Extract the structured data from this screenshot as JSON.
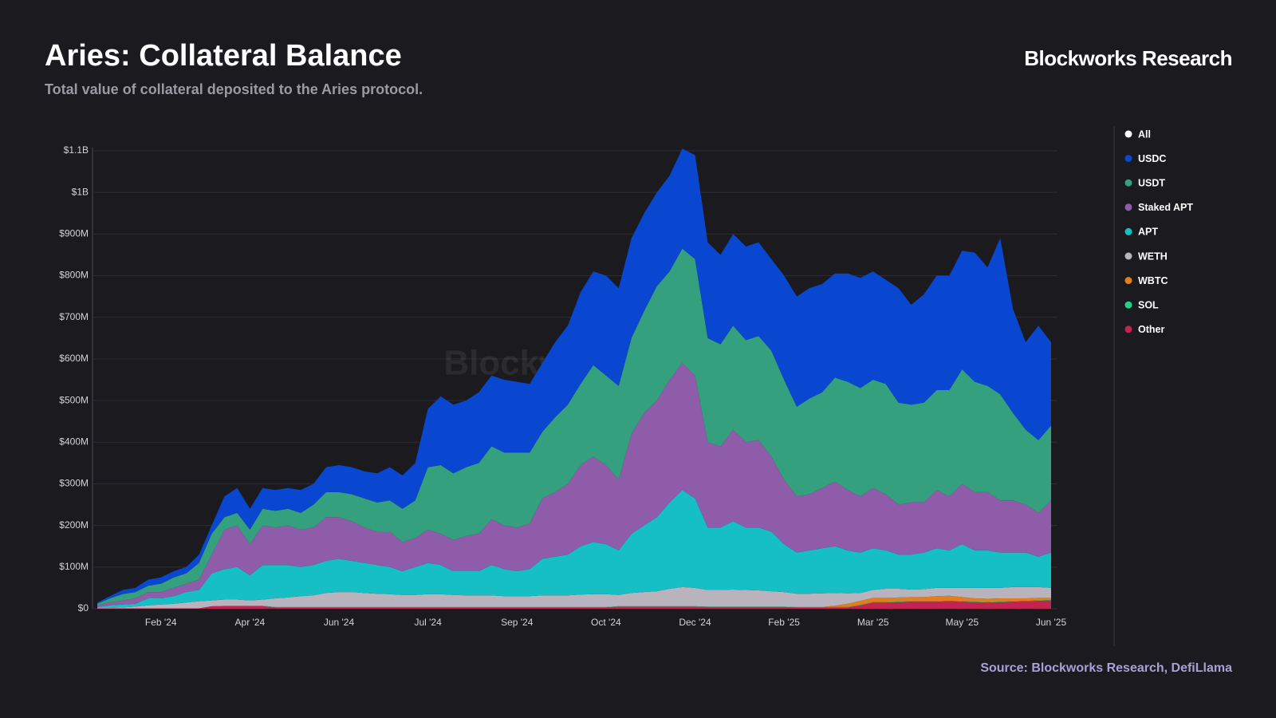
{
  "chart_data": {
    "type": "stacked_area",
    "title": "Aries: Collateral Balance",
    "subtitle": "Total value of collateral deposited to the Aries protocol.",
    "brand": "Blockworks Research",
    "watermark": "Blockworks Research",
    "source": "Source: Blockworks Research, DefiLlama",
    "legend": {
      "position": "right",
      "all_label": "All"
    },
    "grid": true,
    "categories": [
      null,
      null,
      null,
      null,
      null,
      "Feb '24",
      null,
      null,
      null,
      null,
      null,
      null,
      "Apr '24",
      null,
      null,
      null,
      null,
      null,
      null,
      "Jun '24",
      null,
      null,
      null,
      null,
      null,
      null,
      "Jul '24",
      null,
      null,
      null,
      null,
      null,
      null,
      "Sep '24",
      null,
      null,
      null,
      null,
      null,
      null,
      "Oct '24",
      null,
      null,
      null,
      null,
      null,
      null,
      "Dec '24",
      null,
      null,
      null,
      null,
      null,
      null,
      "Feb '25",
      null,
      null,
      null,
      null,
      null,
      null,
      "Mar '25",
      null,
      null,
      null,
      null,
      null,
      null,
      "May '25",
      null,
      null,
      null,
      null,
      null,
      null,
      "Jun '25"
    ],
    "ylim": [
      0,
      1100
    ],
    "yticks": [
      {
        "value": 0,
        "label": "$0"
      },
      {
        "value": 100,
        "label": "$100M"
      },
      {
        "value": 200,
        "label": "$200M"
      },
      {
        "value": 300,
        "label": "$300M"
      },
      {
        "value": 400,
        "label": "$400M"
      },
      {
        "value": 500,
        "label": "$500M"
      },
      {
        "value": 600,
        "label": "$600M"
      },
      {
        "value": 700,
        "label": "$700M"
      },
      {
        "value": 800,
        "label": "$800M"
      },
      {
        "value": 900,
        "label": "$900M"
      },
      {
        "value": 1000,
        "label": "$1B"
      },
      {
        "value": 1100,
        "label": "$1.1B"
      }
    ],
    "series": [
      {
        "name": "USDC",
        "color": "#0a47d1",
        "values": [
          3,
          5,
          10,
          10,
          15,
          15,
          15,
          15,
          20,
          20,
          50,
          60,
          50,
          50,
          50,
          50,
          55,
          50,
          60,
          65,
          65,
          65,
          70,
          80,
          80,
          90,
          140,
          165,
          165,
          160,
          170,
          170,
          175,
          170,
          165,
          165,
          180,
          190,
          220,
          225,
          240,
          235,
          240,
          235,
          225,
          230,
          240,
          250,
          230,
          215,
          220,
          225,
          225,
          220,
          250,
          265,
          265,
          260,
          250,
          260,
          265,
          260,
          250,
          275,
          240,
          260,
          275,
          275,
          285,
          310,
          285,
          375,
          250,
          210,
          275,
          200
        ]
      },
      {
        "name": "USDT",
        "color": "#35a07e",
        "values": [
          4,
          10,
          15,
          15,
          15,
          20,
          25,
          25,
          40,
          50,
          30,
          30,
          35,
          40,
          40,
          40,
          40,
          55,
          60,
          60,
          65,
          70,
          70,
          75,
          80,
          90,
          150,
          165,
          160,
          165,
          170,
          175,
          175,
          180,
          170,
          160,
          180,
          190,
          195,
          220,
          215,
          225,
          230,
          245,
          275,
          260,
          275,
          280,
          250,
          245,
          250,
          245,
          250,
          255,
          240,
          215,
          230,
          230,
          250,
          260,
          260,
          260,
          265,
          245,
          235,
          240,
          240,
          255,
          275,
          265,
          255,
          255,
          210,
          180,
          175,
          180
        ]
      },
      {
        "name": "Staked APT",
        "color": "#8e5ca8",
        "values": [
          4,
          7,
          10,
          13,
          15,
          15,
          20,
          20,
          25,
          45,
          95,
          100,
          75,
          95,
          90,
          95,
          90,
          90,
          105,
          100,
          95,
          85,
          80,
          85,
          70,
          70,
          80,
          75,
          75,
          85,
          90,
          110,
          105,
          105,
          110,
          145,
          155,
          170,
          195,
          205,
          190,
          170,
          240,
          270,
          280,
          295,
          305,
          295,
          205,
          195,
          220,
          205,
          210,
          180,
          155,
          135,
          135,
          145,
          155,
          145,
          135,
          145,
          135,
          120,
          125,
          120,
          140,
          130,
          145,
          140,
          140,
          125,
          125,
          115,
          105,
          125
        ]
      },
      {
        "name": "APT",
        "color": "#15bfc4",
        "values": [
          2,
          6,
          7,
          7,
          17,
          15,
          18,
          25,
          27,
          65,
          73,
          78,
          60,
          83,
          80,
          78,
          70,
          73,
          77,
          80,
          75,
          72,
          69,
          65,
          57,
          67,
          75,
          70,
          57,
          58,
          58,
          73,
          65,
          60,
          65,
          88,
          93,
          98,
          116,
          125,
          120,
          107,
          142,
          160,
          178,
          207,
          233,
          215,
          150,
          150,
          164,
          150,
          151,
          143,
          115,
          99,
          104,
          108,
          112,
          103,
          97,
          100,
          92,
          82,
          84,
          88,
          95,
          90,
          105,
          90,
          90,
          85,
          83,
          83,
          73,
          85
        ]
      },
      {
        "name": "WETH",
        "color": "#b9b3be",
        "values": [
          1,
          1,
          2,
          4,
          7,
          9,
          11,
          14,
          17,
          14,
          15,
          15,
          13,
          15,
          21,
          23,
          26,
          28,
          34,
          36,
          36,
          34,
          32,
          31,
          29,
          29,
          31,
          31,
          29,
          28,
          28,
          28,
          26,
          26,
          26,
          28,
          28,
          28,
          30,
          31,
          31,
          27,
          32,
          34,
          36,
          42,
          46,
          44,
          40,
          40,
          41,
          40,
          39,
          37,
          35,
          32,
          32,
          33,
          31,
          25,
          19,
          19,
          22,
          21,
          18,
          19,
          20,
          19,
          22,
          25,
          26,
          25,
          27,
          27,
          26,
          24
        ]
      },
      {
        "name": "WBTC",
        "color": "#e07f1b",
        "values": [
          0,
          0,
          0,
          0,
          0,
          0,
          0,
          0,
          0,
          0,
          0,
          0,
          0,
          0,
          0,
          0,
          0,
          0,
          0,
          0,
          0,
          0,
          0,
          0,
          0,
          0,
          0,
          0,
          0,
          0,
          0,
          0,
          0,
          0,
          0,
          0,
          0,
          0,
          0,
          0,
          0,
          0,
          0,
          0,
          0,
          0,
          0,
          0,
          0,
          0,
          0,
          0,
          0,
          0,
          0,
          0,
          0,
          0,
          3,
          8,
          10,
          10,
          10,
          10,
          10,
          10,
          12,
          12,
          10,
          8,
          8,
          8,
          7,
          6,
          6,
          5
        ]
      },
      {
        "name": "SOL",
        "color": "#1fd18a",
        "values": [
          0,
          0,
          0,
          0,
          0,
          0,
          0,
          0,
          0,
          0,
          1,
          1,
          1,
          1,
          1,
          1,
          1,
          1,
          1,
          1,
          1,
          1,
          1,
          1,
          1,
          1,
          1,
          1,
          1,
          1,
          1,
          1,
          1,
          1,
          1,
          1,
          1,
          1,
          1,
          1,
          1,
          1,
          1,
          1,
          1,
          1,
          1,
          1,
          1,
          1,
          1,
          1,
          1,
          1,
          1,
          1,
          1,
          1,
          1,
          1,
          1,
          1,
          1,
          1,
          1,
          1,
          1,
          1,
          1,
          1,
          1,
          1,
          1,
          1,
          1,
          1
        ]
      },
      {
        "name": "Other",
        "color": "#c2234f",
        "values": [
          1,
          1,
          1,
          1,
          1,
          1,
          1,
          1,
          1,
          6,
          6,
          6,
          6,
          6,
          3,
          3,
          3,
          3,
          3,
          3,
          3,
          3,
          3,
          3,
          3,
          3,
          3,
          3,
          3,
          3,
          3,
          3,
          3,
          3,
          3,
          3,
          3,
          3,
          3,
          3,
          3,
          5,
          5,
          5,
          5,
          5,
          5,
          5,
          4,
          4,
          4,
          4,
          4,
          4,
          4,
          3,
          3,
          3,
          3,
          3,
          8,
          15,
          15,
          16,
          17,
          17,
          17,
          18,
          17,
          16,
          15,
          16,
          17,
          18,
          19,
          20
        ]
      }
    ]
  }
}
